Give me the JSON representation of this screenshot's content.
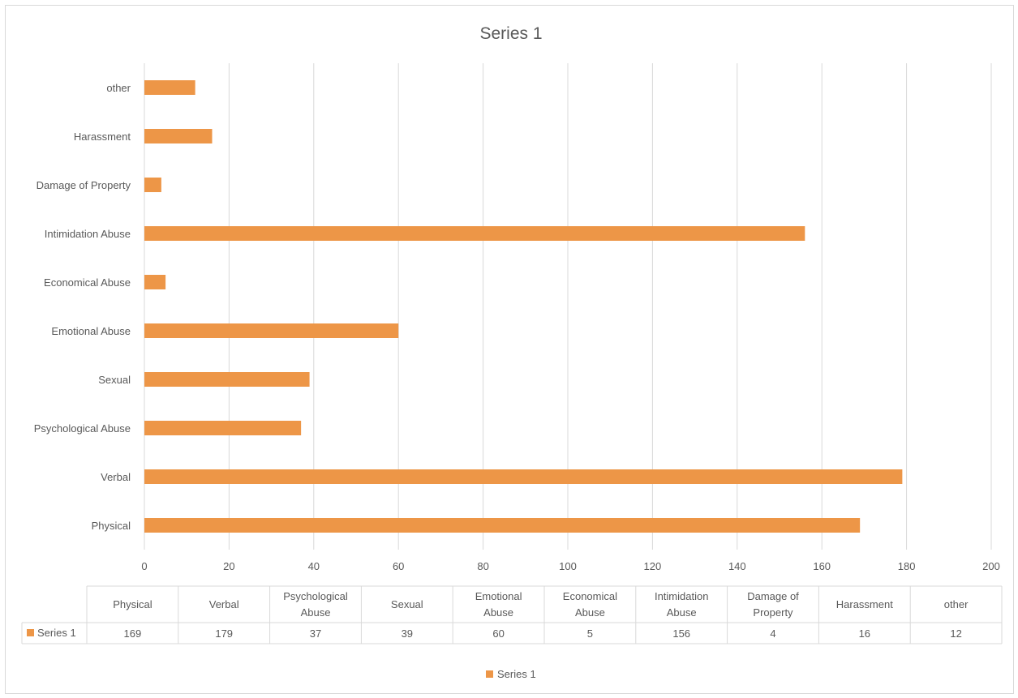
{
  "chart_data": {
    "type": "bar",
    "orientation": "horizontal",
    "title": "Series 1",
    "categories": [
      "Physical",
      "Verbal",
      "Psychological Abuse",
      "Sexual",
      "Emotional Abuse",
      "Economical Abuse",
      "Intimidation Abuse",
      "Damage of Property",
      "Harassment",
      "other"
    ],
    "table_headers": [
      [
        "Physical"
      ],
      [
        "Verbal"
      ],
      [
        "Psychological",
        "Abuse"
      ],
      [
        "Sexual"
      ],
      [
        "Emotional",
        "Abuse"
      ],
      [
        "Economical",
        "Abuse"
      ],
      [
        "Intimidation",
        "Abuse"
      ],
      [
        "Damage of",
        "Property"
      ],
      [
        "Harassment"
      ],
      [
        "other"
      ]
    ],
    "series": [
      {
        "name": "Series 1",
        "values": [
          169,
          179,
          37,
          39,
          60,
          5,
          156,
          4,
          16,
          12
        ],
        "color": "#ED9647"
      }
    ],
    "xlim": [
      0,
      200
    ],
    "xticks": [
      0,
      20,
      40,
      60,
      80,
      100,
      120,
      140,
      160,
      180,
      200
    ],
    "grid": true,
    "legend": {
      "position": "bottom",
      "label": "Series 1"
    },
    "data_table": true
  }
}
